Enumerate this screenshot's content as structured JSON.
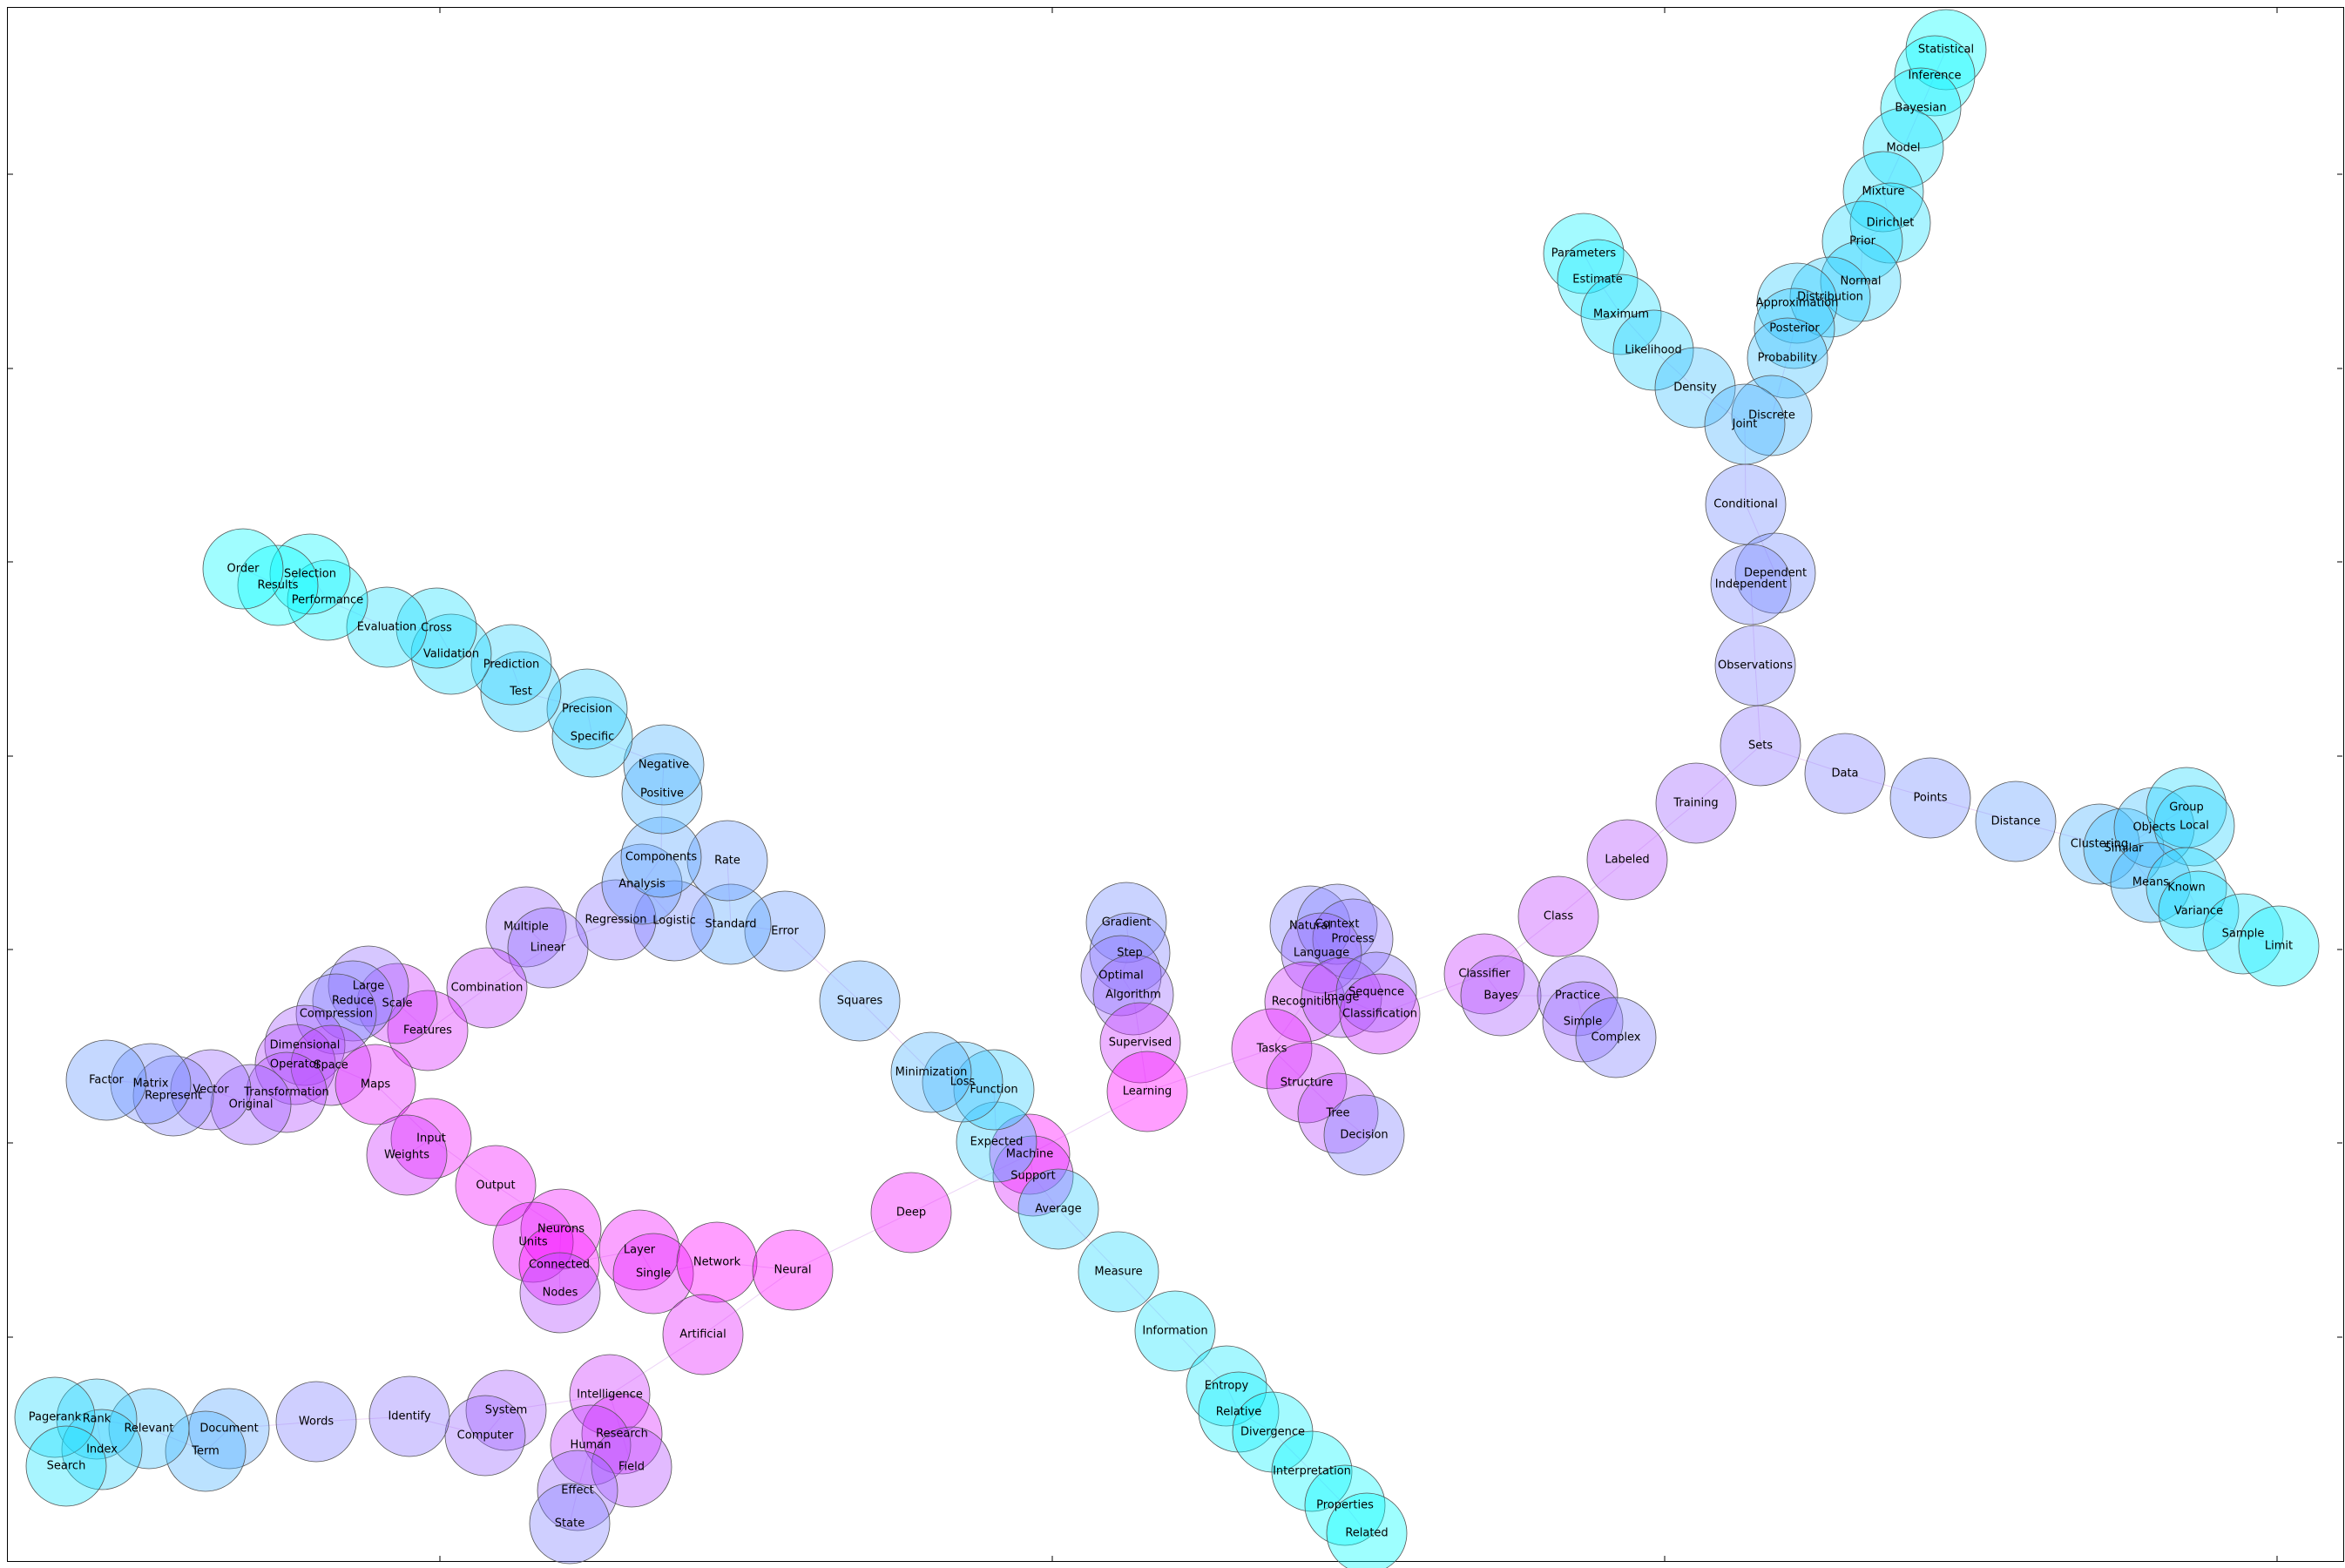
{
  "graph": {
    "nodes": [
      {
        "label": "Statistical",
        "c": 0.0
      },
      {
        "label": "Inference",
        "c": 0.03
      },
      {
        "label": "Bayesian",
        "c": 0.06
      },
      {
        "label": "Model",
        "c": 0.1
      },
      {
        "label": "Mixture",
        "c": 0.12
      },
      {
        "label": "Dirichlet",
        "c": 0.12
      },
      {
        "label": "Prior",
        "c": 0.15
      },
      {
        "label": "Normal",
        "c": 0.18
      },
      {
        "label": "Distribution",
        "c": 0.2
      },
      {
        "label": "Approximation",
        "c": 0.2
      },
      {
        "label": "Posterior",
        "c": 0.22
      },
      {
        "label": "Probability",
        "c": 0.25
      },
      {
        "label": "Discrete",
        "c": 0.28
      },
      {
        "label": "Parameters",
        "c": 0.05
      },
      {
        "label": "Estimate",
        "c": 0.08
      },
      {
        "label": "Maximum",
        "c": 0.12
      },
      {
        "label": "Likelihood",
        "c": 0.18
      },
      {
        "label": "Density",
        "c": 0.25
      },
      {
        "label": "Joint",
        "c": 0.3
      },
      {
        "label": "Conditional",
        "c": 0.45
      },
      {
        "label": "Dependent",
        "c": 0.45
      },
      {
        "label": "Independent",
        "c": 0.48
      },
      {
        "label": "Observations",
        "c": 0.5
      },
      {
        "label": "Sets",
        "c": 0.55
      },
      {
        "label": "Data",
        "c": 0.5
      },
      {
        "label": "Points",
        "c": 0.45
      },
      {
        "label": "Distance",
        "c": 0.38
      },
      {
        "label": "Clustering",
        "c": 0.3
      },
      {
        "label": "Similar",
        "c": 0.25
      },
      {
        "label": "Objects",
        "c": 0.25
      },
      {
        "label": "Group",
        "c": 0.15
      },
      {
        "label": "Local",
        "c": 0.18
      },
      {
        "label": "Means",
        "c": 0.28
      },
      {
        "label": "Known",
        "c": 0.15
      },
      {
        "label": "Variance",
        "c": 0.12
      },
      {
        "label": "Sample",
        "c": 0.1
      },
      {
        "label": "Limit",
        "c": 0.05
      },
      {
        "label": "Training",
        "c": 0.62
      },
      {
        "label": "Labeled",
        "c": 0.7
      },
      {
        "label": "Class",
        "c": 0.75
      },
      {
        "label": "Classifier",
        "c": 0.78
      },
      {
        "label": "Bayes",
        "c": 0.65
      },
      {
        "label": "Practice",
        "c": 0.6
      },
      {
        "label": "Simple",
        "c": 0.6
      },
      {
        "label": "Complex",
        "c": 0.5
      },
      {
        "label": "Natural",
        "c": 0.5
      },
      {
        "label": "Context",
        "c": 0.5
      },
      {
        "label": "Process",
        "c": 0.55
      },
      {
        "label": "Language",
        "c": 0.6
      },
      {
        "label": "Recognition",
        "c": 0.8
      },
      {
        "label": "Image",
        "c": 0.7
      },
      {
        "label": "Sequence",
        "c": 0.55
      },
      {
        "label": "Classification",
        "c": 0.8
      },
      {
        "label": "Tasks",
        "c": 0.9
      },
      {
        "label": "Structure",
        "c": 0.8
      },
      {
        "label": "Tree",
        "c": 0.72
      },
      {
        "label": "Decision",
        "c": 0.5
      },
      {
        "label": "Gradient",
        "c": 0.45
      },
      {
        "label": "Step",
        "c": 0.5
      },
      {
        "label": "Optimal",
        "c": 0.55
      },
      {
        "label": "Algorithm",
        "c": 0.6
      },
      {
        "label": "Supervised",
        "c": 0.8
      },
      {
        "label": "Learning",
        "c": 1.0
      },
      {
        "label": "Machine",
        "c": 1.0
      },
      {
        "label": "Support",
        "c": 0.85
      },
      {
        "label": "Expected",
        "c": 0.2
      },
      {
        "label": "Average",
        "c": 0.2
      },
      {
        "label": "Measure",
        "c": 0.15
      },
      {
        "label": "Information",
        "c": 0.1
      },
      {
        "label": "Entropy",
        "c": 0.08
      },
      {
        "label": "Relative",
        "c": 0.05
      },
      {
        "label": "Divergence",
        "c": 0.05
      },
      {
        "label": "Interpretation",
        "c": 0.03
      },
      {
        "label": "Properties",
        "c": 0.02
      },
      {
        "label": "Related",
        "c": 0.0
      },
      {
        "label": "Function",
        "c": 0.2
      },
      {
        "label": "Loss",
        "c": 0.25
      },
      {
        "label": "Minimization",
        "c": 0.3
      },
      {
        "label": "Squares",
        "c": 0.35
      },
      {
        "label": "Error",
        "c": 0.4
      },
      {
        "label": "Standard",
        "c": 0.35
      },
      {
        "label": "Rate",
        "c": 0.4
      },
      {
        "label": "Logistic",
        "c": 0.45
      },
      {
        "label": "Regression",
        "c": 0.55
      },
      {
        "label": "Analysis",
        "c": 0.4
      },
      {
        "label": "Components",
        "c": 0.35
      },
      {
        "label": "Positive",
        "c": 0.3
      },
      {
        "label": "Negative",
        "c": 0.3
      },
      {
        "label": "Specific",
        "c": 0.2
      },
      {
        "label": "Precision",
        "c": 0.2
      },
      {
        "label": "Test",
        "c": 0.2
      },
      {
        "label": "Prediction",
        "c": 0.18
      },
      {
        "label": "Validation",
        "c": 0.15
      },
      {
        "label": "Cross",
        "c": 0.12
      },
      {
        "label": "Evaluation",
        "c": 0.12
      },
      {
        "label": "Performance",
        "c": 0.05
      },
      {
        "label": "Selection",
        "c": 0.03
      },
      {
        "label": "Results",
        "c": 0.0
      },
      {
        "label": "Order",
        "c": 0.02
      },
      {
        "label": "Multiple",
        "c": 0.6
      },
      {
        "label": "Linear",
        "c": 0.58
      },
      {
        "label": "Combination",
        "c": 0.75
      },
      {
        "label": "Features",
        "c": 0.85
      },
      {
        "label": "Scale",
        "c": 0.8
      },
      {
        "label": "Large",
        "c": 0.58
      },
      {
        "label": "Reduce",
        "c": 0.5
      },
      {
        "label": "Compression",
        "c": 0.55
      },
      {
        "label": "Dimensional",
        "c": 0.65
      },
      {
        "label": "Operator",
        "c": 0.7
      },
      {
        "label": "Space",
        "c": 0.75
      },
      {
        "label": "Maps",
        "c": 0.9
      },
      {
        "label": "Transformation",
        "c": 0.7
      },
      {
        "label": "Original",
        "c": 0.62
      },
      {
        "label": "Vector",
        "c": 0.6
      },
      {
        "label": "Represent",
        "c": 0.5
      },
      {
        "label": "Matrix",
        "c": 0.45
      },
      {
        "label": "Factor",
        "c": 0.4
      },
      {
        "label": "Input",
        "c": 0.95
      },
      {
        "label": "Weights",
        "c": 0.8
      },
      {
        "label": "Output",
        "c": 0.95
      },
      {
        "label": "Neurons",
        "c": 0.95
      },
      {
        "label": "Units",
        "c": 0.9
      },
      {
        "label": "Connected",
        "c": 1.0
      },
      {
        "label": "Nodes",
        "c": 0.7
      },
      {
        "label": "Layer",
        "c": 0.95
      },
      {
        "label": "Single",
        "c": 0.9
      },
      {
        "label": "Network",
        "c": 1.0
      },
      {
        "label": "Neural",
        "c": 1.0
      },
      {
        "label": "Deep",
        "c": 0.95
      },
      {
        "label": "Artificial",
        "c": 0.9
      },
      {
        "label": "Intelligence",
        "c": 0.8
      },
      {
        "label": "Research",
        "c": 0.85
      },
      {
        "label": "Human",
        "c": 0.75
      },
      {
        "label": "Field",
        "c": 0.7
      },
      {
        "label": "Effect",
        "c": 0.6
      },
      {
        "label": "State",
        "c": 0.5
      },
      {
        "label": "System",
        "c": 0.65
      },
      {
        "label": "Computer",
        "c": 0.6
      },
      {
        "label": "Identify",
        "c": 0.55
      },
      {
        "label": "Words",
        "c": 0.5
      },
      {
        "label": "Document",
        "c": 0.35
      },
      {
        "label": "Term",
        "c": 0.3
      },
      {
        "label": "Relevant",
        "c": 0.25
      },
      {
        "label": "Rank",
        "c": 0.2
      },
      {
        "label": "Index",
        "c": 0.18
      },
      {
        "label": "Pagerank",
        "c": 0.15
      },
      {
        "label": "Search",
        "c": 0.1
      }
    ],
    "edges": [
      [
        "Statistical",
        "Inference"
      ],
      [
        "Inference",
        "Bayesian"
      ],
      [
        "Bayesian",
        "Model"
      ],
      [
        "Model",
        "Mixture"
      ],
      [
        "Mixture",
        "Dirichlet"
      ],
      [
        "Dirichlet",
        "Prior"
      ],
      [
        "Prior",
        "Normal"
      ],
      [
        "Normal",
        "Distribution"
      ],
      [
        "Distribution",
        "Approximation"
      ],
      [
        "Approximation",
        "Posterior"
      ],
      [
        "Posterior",
        "Probability"
      ],
      [
        "Probability",
        "Discrete"
      ],
      [
        "Discrete",
        "Joint"
      ],
      [
        "Parameters",
        "Estimate"
      ],
      [
        "Estimate",
        "Maximum"
      ],
      [
        "Maximum",
        "Likelihood"
      ],
      [
        "Likelihood",
        "Density"
      ],
      [
        "Density",
        "Joint"
      ],
      [
        "Joint",
        "Conditional"
      ],
      [
        "Conditional",
        "Dependent"
      ],
      [
        "Dependent",
        "Independent"
      ],
      [
        "Independent",
        "Observations"
      ],
      [
        "Observations",
        "Sets"
      ],
      [
        "Sets",
        "Data"
      ],
      [
        "Data",
        "Points"
      ],
      [
        "Points",
        "Distance"
      ],
      [
        "Distance",
        "Clustering"
      ],
      [
        "Clustering",
        "Similar"
      ],
      [
        "Similar",
        "Objects"
      ],
      [
        "Objects",
        "Group"
      ],
      [
        "Objects",
        "Local"
      ],
      [
        "Similar",
        "Means"
      ],
      [
        "Means",
        "Known"
      ],
      [
        "Known",
        "Variance"
      ],
      [
        "Variance",
        "Sample"
      ],
      [
        "Sample",
        "Limit"
      ],
      [
        "Sets",
        "Training"
      ],
      [
        "Training",
        "Labeled"
      ],
      [
        "Labeled",
        "Class"
      ],
      [
        "Class",
        "Classifier"
      ],
      [
        "Classifier",
        "Bayes"
      ],
      [
        "Bayes",
        "Practice"
      ],
      [
        "Practice",
        "Simple"
      ],
      [
        "Simple",
        "Complex"
      ],
      [
        "Classifier",
        "Classification"
      ],
      [
        "Classification",
        "Image"
      ],
      [
        "Image",
        "Sequence"
      ],
      [
        "Sequence",
        "Process"
      ],
      [
        "Process",
        "Context"
      ],
      [
        "Context",
        "Natural"
      ],
      [
        "Natural",
        "Language"
      ],
      [
        "Image",
        "Recognition"
      ],
      [
        "Recognition",
        "Tasks"
      ],
      [
        "Tasks",
        "Structure"
      ],
      [
        "Structure",
        "Tree"
      ],
      [
        "Tree",
        "Decision"
      ],
      [
        "Tasks",
        "Learning"
      ],
      [
        "Learning",
        "Supervised"
      ],
      [
        "Supervised",
        "Algorithm"
      ],
      [
        "Algorithm",
        "Optimal"
      ],
      [
        "Optimal",
        "Step"
      ],
      [
        "Step",
        "Gradient"
      ],
      [
        "Learning",
        "Machine"
      ],
      [
        "Machine",
        "Support"
      ],
      [
        "Machine",
        "Expected"
      ],
      [
        "Support",
        "Average"
      ],
      [
        "Average",
        "Measure"
      ],
      [
        "Measure",
        "Information"
      ],
      [
        "Information",
        "Entropy"
      ],
      [
        "Entropy",
        "Relative"
      ],
      [
        "Relative",
        "Divergence"
      ],
      [
        "Divergence",
        "Interpretation"
      ],
      [
        "Interpretation",
        "Properties"
      ],
      [
        "Properties",
        "Related"
      ],
      [
        "Expected",
        "Function"
      ],
      [
        "Function",
        "Loss"
      ],
      [
        "Loss",
        "Minimization"
      ],
      [
        "Minimization",
        "Squares"
      ],
      [
        "Squares",
        "Error"
      ],
      [
        "Error",
        "Standard"
      ],
      [
        "Standard",
        "Rate"
      ],
      [
        "Standard",
        "Logistic"
      ],
      [
        "Logistic",
        "Regression"
      ],
      [
        "Logistic",
        "Analysis"
      ],
      [
        "Analysis",
        "Components"
      ],
      [
        "Components",
        "Positive"
      ],
      [
        "Positive",
        "Negative"
      ],
      [
        "Negative",
        "Specific"
      ],
      [
        "Specific",
        "Precision"
      ],
      [
        "Precision",
        "Test"
      ],
      [
        "Test",
        "Prediction"
      ],
      [
        "Prediction",
        "Validation"
      ],
      [
        "Validation",
        "Cross"
      ],
      [
        "Cross",
        "Evaluation"
      ],
      [
        "Evaluation",
        "Performance"
      ],
      [
        "Performance",
        "Selection"
      ],
      [
        "Selection",
        "Results"
      ],
      [
        "Results",
        "Order"
      ],
      [
        "Regression",
        "Linear"
      ],
      [
        "Linear",
        "Multiple"
      ],
      [
        "Linear",
        "Combination"
      ],
      [
        "Combination",
        "Features"
      ],
      [
        "Features",
        "Scale"
      ],
      [
        "Scale",
        "Large"
      ],
      [
        "Large",
        "Reduce"
      ],
      [
        "Reduce",
        "Compression"
      ],
      [
        "Compression",
        "Dimensional"
      ],
      [
        "Dimensional",
        "Operator"
      ],
      [
        "Operator",
        "Space"
      ],
      [
        "Space",
        "Maps"
      ],
      [
        "Space",
        "Transformation"
      ],
      [
        "Transformation",
        "Original"
      ],
      [
        "Original",
        "Vector"
      ],
      [
        "Vector",
        "Represent"
      ],
      [
        "Represent",
        "Matrix"
      ],
      [
        "Matrix",
        "Factor"
      ],
      [
        "Maps",
        "Input"
      ],
      [
        "Input",
        "Weights"
      ],
      [
        "Input",
        "Output"
      ],
      [
        "Output",
        "Neurons"
      ],
      [
        "Neurons",
        "Units"
      ],
      [
        "Neurons",
        "Connected"
      ],
      [
        "Connected",
        "Nodes"
      ],
      [
        "Connected",
        "Layer"
      ],
      [
        "Layer",
        "Single"
      ],
      [
        "Single",
        "Network"
      ],
      [
        "Network",
        "Neural"
      ],
      [
        "Neural",
        "Deep"
      ],
      [
        "Deep",
        "Machine"
      ],
      [
        "Neural",
        "Artificial"
      ],
      [
        "Artificial",
        "Intelligence"
      ],
      [
        "Intelligence",
        "Research"
      ],
      [
        "Research",
        "Human"
      ],
      [
        "Research",
        "Field"
      ],
      [
        "Human",
        "Effect"
      ],
      [
        "Effect",
        "State"
      ],
      [
        "Intelligence",
        "System"
      ],
      [
        "System",
        "Computer"
      ],
      [
        "Computer",
        "Identify"
      ],
      [
        "Identify",
        "Words"
      ],
      [
        "Words",
        "Document"
      ],
      [
        "Document",
        "Term"
      ],
      [
        "Term",
        "Relevant"
      ],
      [
        "Relevant",
        "Rank"
      ],
      [
        "Rank",
        "Index"
      ],
      [
        "Rank",
        "Pagerank"
      ],
      [
        "Index",
        "Search"
      ]
    ]
  }
}
